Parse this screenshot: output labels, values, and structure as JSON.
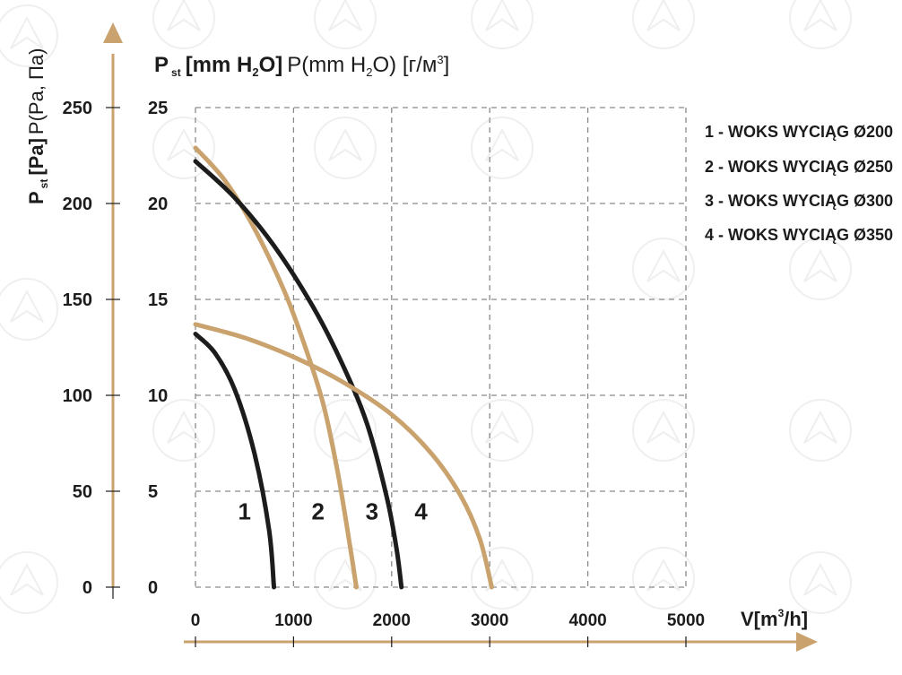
{
  "chart_data": {
    "type": "line",
    "axis_labels": {
      "y_left_main": "P",
      "y_left_sub": "st",
      "y_left_units": "[Pa]",
      "y_left_extra": "P(Pa, Па)",
      "y_right_main": "P",
      "y_right_sub": "st",
      "y_right_units_1": "[mm H",
      "y_right_units_sub": "2",
      "y_right_units_2": "O]",
      "y_right_extra_1": "P(mm H",
      "y_right_extra_sub": "2",
      "y_right_extra_2": "O) [г/м",
      "y_right_extra_sup": "3",
      "y_right_extra_3": "]",
      "x_main": "V[m",
      "x_sup": "3",
      "x_tail": "/h]"
    },
    "xlim": [
      0,
      5000
    ],
    "ylim_pa": [
      0,
      250
    ],
    "ylim_mmh2o": [
      0,
      25
    ],
    "x_ticks": [
      "0",
      "1000",
      "2000",
      "3000",
      "4000",
      "5000"
    ],
    "y_ticks_pa": [
      "0",
      "50",
      "100",
      "150",
      "200",
      "250"
    ],
    "y_ticks_mm": [
      "0",
      "5",
      "10",
      "15",
      "20",
      "25"
    ],
    "grid": true,
    "legend_position": "top-right",
    "legend": [
      "1 - WOKS  WYCIĄG Ø200",
      "2 - WOKS  WYCIĄG Ø250",
      "3 - WOKS  WYCIĄG Ø300",
      "4 - WOKS  WYCIĄG Ø350"
    ],
    "colors": {
      "dark": "#1c1c1c",
      "tan": "#c9a26d",
      "grid": "#8a8a8a"
    },
    "series": [
      {
        "name": "1",
        "color": "dark",
        "label_at": [
          500,
          40
        ],
        "points": [
          [
            0,
            132
          ],
          [
            200,
            122
          ],
          [
            400,
            103
          ],
          [
            600,
            70
          ],
          [
            750,
            30
          ],
          [
            800,
            0
          ]
        ]
      },
      {
        "name": "2",
        "color": "tan",
        "label_at": [
          1250,
          40
        ],
        "points": [
          [
            0,
            229
          ],
          [
            300,
            212
          ],
          [
            600,
            187
          ],
          [
            900,
            155
          ],
          [
            1100,
            128
          ],
          [
            1300,
            96
          ],
          [
            1450,
            60
          ],
          [
            1580,
            20
          ],
          [
            1640,
            0
          ]
        ]
      },
      {
        "name": "3",
        "color": "dark",
        "label_at": [
          1800,
          40
        ],
        "points": [
          [
            0,
            222
          ],
          [
            400,
            203
          ],
          [
            800,
            178
          ],
          [
            1200,
            146
          ],
          [
            1500,
            116
          ],
          [
            1750,
            85
          ],
          [
            1950,
            47
          ],
          [
            2050,
            20
          ],
          [
            2100,
            0
          ]
        ]
      },
      {
        "name": "4",
        "color": "tan",
        "label_at": [
          2300,
          40
        ],
        "points": [
          [
            0,
            137
          ],
          [
            500,
            130
          ],
          [
            1000,
            120
          ],
          [
            1500,
            107
          ],
          [
            2000,
            90
          ],
          [
            2400,
            70
          ],
          [
            2700,
            48
          ],
          [
            2900,
            25
          ],
          [
            3020,
            0
          ]
        ]
      }
    ]
  }
}
